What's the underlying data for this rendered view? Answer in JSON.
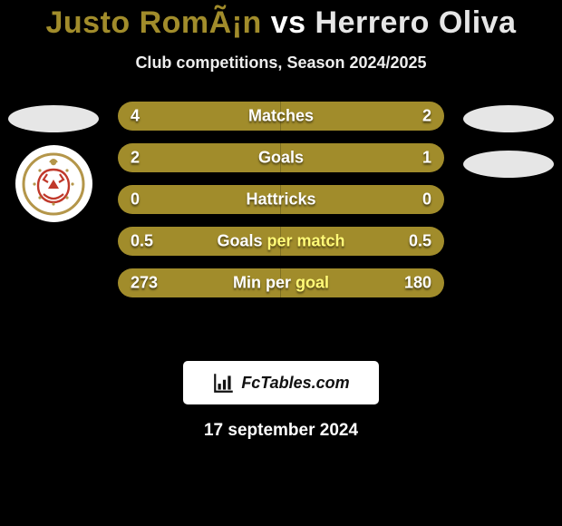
{
  "colors": {
    "background": "#000000",
    "text": "#ffffff",
    "player1": "#a18c2b",
    "player2": "#e6e6e6",
    "row_label_secondary": "#c9b456"
  },
  "header": {
    "player1_name": "Justo RomÃ¡n",
    "vs": "vs",
    "player2_name": "Herrero Oliva",
    "subtitle": "Club competitions, Season 2024/2025"
  },
  "side_markers": {
    "left_top_color": "#e6e6e6",
    "right_top_color": "#e6e6e6",
    "right_second_color": "#e6e6e6"
  },
  "crest": {
    "ring_color": "#b4964a",
    "inner_text_color": "#c0392b"
  },
  "rows": [
    {
      "label": "Matches",
      "label2": "",
      "left": "4",
      "right": "2"
    },
    {
      "label": "Goals",
      "label2": "",
      "left": "2",
      "right": "1"
    },
    {
      "label": "Hattricks",
      "label2": "",
      "left": "0",
      "right": "0"
    },
    {
      "label": "Goals",
      "label2": "per match",
      "left": "0.5",
      "right": "0.5"
    },
    {
      "label": "Min per",
      "label2": "goal",
      "left": "273",
      "right": "180"
    }
  ],
  "footer": {
    "brand": "FcTables.com",
    "date": "17 september 2024"
  }
}
